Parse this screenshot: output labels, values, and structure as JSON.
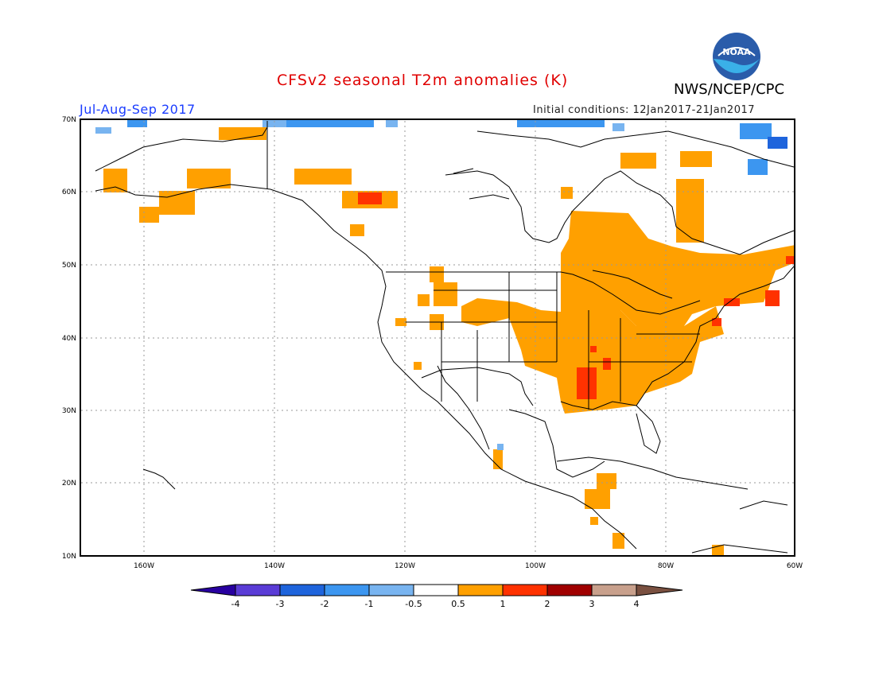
{
  "title": "CFSv2 seasonal T2m anomalies (K)",
  "period": "Jul-Aug-Sep 2017",
  "initial_conditions": "Initial conditions: 12Jan2017-21Jan2017",
  "agency": "NWS/NCEP/CPC",
  "logo_text": "NOAA",
  "lat_ticks": [
    "70N",
    "60N",
    "50N",
    "40N",
    "30N",
    "20N",
    "10N"
  ],
  "lon_ticks": [
    "160W",
    "140W",
    "120W",
    "100W",
    "80W",
    "60W"
  ],
  "colorbar": {
    "labels": [
      "-4",
      "-3",
      "-2",
      "-1",
      "-0.5",
      "0.5",
      "1",
      "2",
      "3",
      "4"
    ],
    "colors": [
      "#2800a0",
      "#5a3cd6",
      "#1e64dc",
      "#3c96f0",
      "#78b4f0",
      "#ffffff",
      "#ffa000",
      "#ff3200",
      "#a00000",
      "#c8a08c",
      "#7a5040"
    ]
  }
}
